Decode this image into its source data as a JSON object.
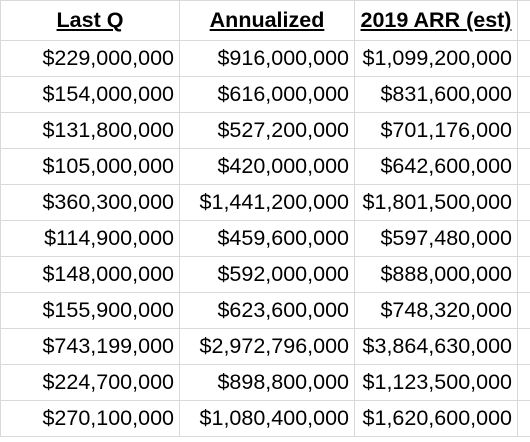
{
  "columns": [
    "Last Q",
    "Annualized",
    "2019 ARR (est)"
  ],
  "rows": [
    [
      "$229,000,000",
      "$916,000,000",
      "$1,099,200,000"
    ],
    [
      "$154,000,000",
      "$616,000,000",
      "$831,600,000"
    ],
    [
      "$131,800,000",
      "$527,200,000",
      "$701,176,000"
    ],
    [
      "$105,000,000",
      "$420,000,000",
      "$642,600,000"
    ],
    [
      "$360,300,000",
      "$1,441,200,000",
      "$1,801,500,000"
    ],
    [
      "$114,900,000",
      "$459,600,000",
      "$597,480,000"
    ],
    [
      "$148,000,000",
      "$592,000,000",
      "$888,000,000"
    ],
    [
      "$155,900,000",
      "$623,600,000",
      "$748,320,000"
    ],
    [
      "$743,199,000",
      "$2,972,796,000",
      "$3,864,630,000"
    ],
    [
      "$224,700,000",
      "$898,800,000",
      "$1,123,500,000"
    ],
    [
      "$270,100,000",
      "$1,080,400,000",
      "$1,620,600,000"
    ]
  ],
  "colors": {
    "gridline": "#d9d9d9",
    "text": "#000000",
    "background": "#ffffff"
  }
}
